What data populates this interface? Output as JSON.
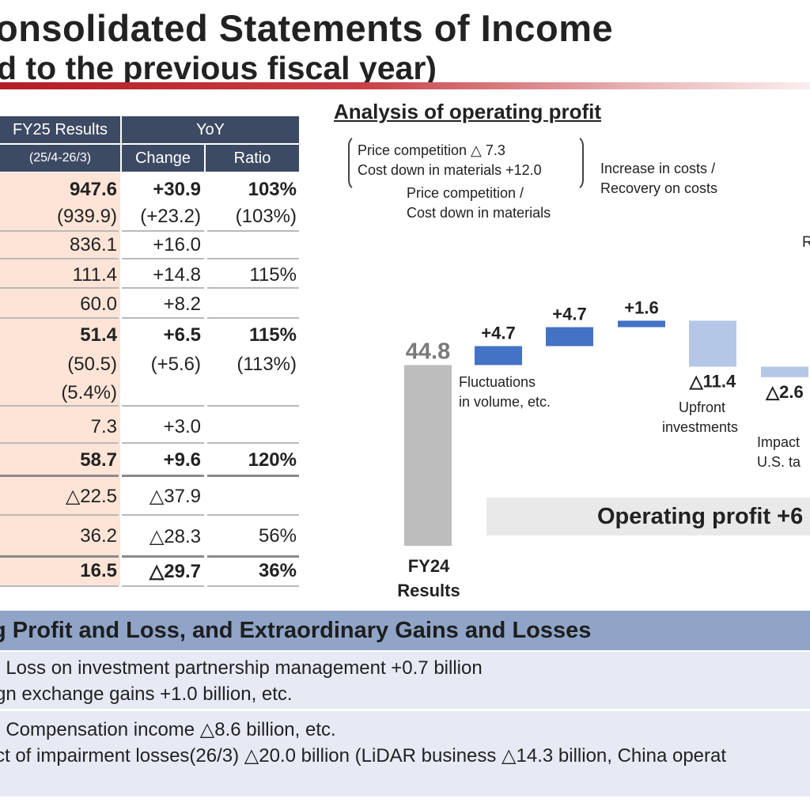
{
  "title": {
    "line1": "onsolidated Statements of Income",
    "line2": "d to the previous fiscal year)"
  },
  "table": {
    "header_results": "FY25 Results",
    "header_period": "(25/4-26/3)",
    "header_yoy": "YoY",
    "header_change": "Change",
    "header_ratio": "Ratio",
    "rows": [
      {
        "result": "947.6",
        "change": "+30.9",
        "ratio": "103%"
      },
      {
        "result": "(939.9)",
        "change": "(+23.2)",
        "ratio": "(103%)"
      },
      {
        "result": "836.1",
        "change": "+16.0",
        "ratio": ""
      },
      {
        "result": "111.4",
        "change": "+14.8",
        "ratio": "115%"
      },
      {
        "result": "60.0",
        "change": "+8.2",
        "ratio": ""
      },
      {
        "result": "51.4",
        "change": "+6.5",
        "ratio": "115%"
      },
      {
        "result": "(50.5)",
        "change": "(+5.6)",
        "ratio": "(113%)"
      },
      {
        "result": "(5.4%)",
        "change": "",
        "ratio": ""
      },
      {
        "result": "7.3",
        "change": "+3.0",
        "ratio": ""
      },
      {
        "result": "58.7",
        "change": "+9.6",
        "ratio": "120%"
      },
      {
        "result": "△22.5",
        "change": "△37.9",
        "ratio": ""
      },
      {
        "result": "36.2",
        "change": "△28.3",
        "ratio": "56%"
      },
      {
        "result": "16.5",
        "change": "△29.7",
        "ratio": "36%"
      }
    ]
  },
  "chart_data": {
    "type": "bar",
    "title": "Analysis of operating profit",
    "categories": [
      "FY24 Results",
      "Fluctuations in volume, etc.",
      "Price competition / Cost down in materials",
      "Increase in costs / Recovery on costs",
      "Upfront investments",
      "Impact U.S. ta"
    ],
    "values": [
      44.8,
      4.7,
      4.7,
      1.6,
      -11.4,
      -2.6
    ],
    "value_labels": [
      "44.8",
      "+4.7",
      "+4.7",
      "+1.6",
      "△11.4",
      "△2.6"
    ],
    "colors": {
      "base": "#bdbdbd",
      "increase": "#4472c4",
      "decrease": "#b4c7e7",
      "base_label": "#7a7a7a"
    }
  },
  "chart_text": {
    "bracket_line1": "Price competition △ 7.3",
    "bracket_line2": "Cost down in materials +12.0",
    "price_label_1": "Price competition /",
    "price_label_2": "Cost down in materials",
    "costs_label_1": "Increase in costs /",
    "costs_label_2": "Recovery on costs",
    "fluct_label_1": "Fluctuations",
    "fluct_label_2": "in volume, etc.",
    "upfront_label_1": "Upfront",
    "upfront_label_2": "investments",
    "impact_label_1": "Impact",
    "impact_label_2": "U.S. ta",
    "edge_label": "R",
    "op_profit_text": "Operating profit +6",
    "x_label_1": "FY24",
    "x_label_2": "Results"
  },
  "bottom": {
    "band_title": "g Profit and Loss, and Extraordinary Gains and Losses",
    "line1": ": Loss on investment partnership management +0.7 billion",
    "line2": "gn exchange gains +1.0 billion, etc.",
    "line3": ": Compensation income △8.6 billion, etc.",
    "line4": "ct of impairment losses(26/3) △20.0 billion (LiDAR business △14.3 billion, China operat"
  }
}
